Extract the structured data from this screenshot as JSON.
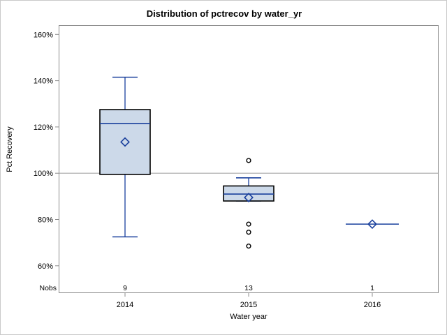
{
  "title": "Distribution of pctrecov by water_yr",
  "labels": {
    "y": "Pct Recovery",
    "x": "Water year",
    "nobs": "Nobs"
  },
  "chart_data": {
    "type": "boxplot",
    "title": "Distribution of pctrecov by water_yr",
    "xlabel": "Water year",
    "ylabel": "Pct Recovery",
    "ylim": [
      48,
      164
    ],
    "grid": false,
    "reference_line": 100,
    "yticks": [
      160,
      140,
      120,
      100,
      80,
      60
    ],
    "yticklabels": [
      "160%",
      "140%",
      "120%",
      "100%",
      "80%",
      "60%"
    ],
    "categories": [
      "2014",
      "2015",
      "2016"
    ],
    "nobs_row_label": "Nobs",
    "nobs": [
      "9",
      "13",
      "1"
    ],
    "series": [
      {
        "category": "2014",
        "n": 9,
        "whisker_low": 72.5,
        "q1": 99.5,
        "median": 121.5,
        "q3": 127.5,
        "whisker_high": 141.5,
        "mean": 113.5,
        "outliers": []
      },
      {
        "category": "2015",
        "n": 13,
        "whisker_low": 88,
        "q1": 88,
        "median": 91,
        "q3": 94.5,
        "whisker_high": 98,
        "mean": 89.5,
        "outliers": [
          105.5,
          78,
          74.5,
          68.5
        ]
      },
      {
        "category": "2016",
        "n": 1,
        "single_value": 78,
        "mean": 78,
        "outliers": []
      }
    ],
    "colors": {
      "box_fill": "#ccd9e9",
      "box_border": "#000000",
      "line_blue": "#1a409d",
      "reference_line": "#a6a6a6",
      "frame": "#8c8c8c",
      "text": "#000000"
    }
  }
}
